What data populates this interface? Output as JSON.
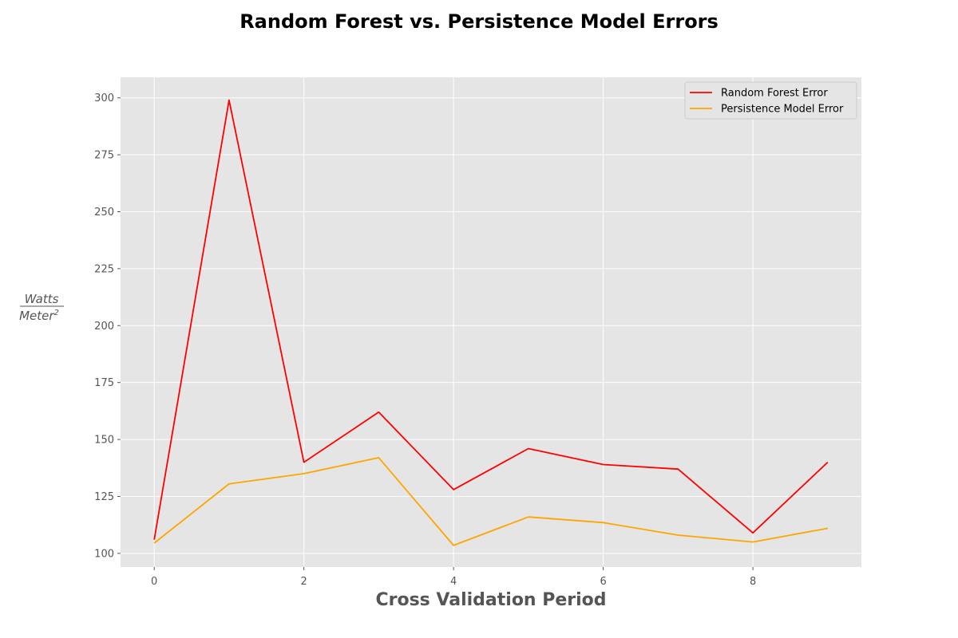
{
  "chart_data": {
    "type": "line",
    "title": "Random Forest vs. Persistence Model Errors",
    "xlabel": "Cross Validation Period",
    "ylabel": {
      "numerator": "Watts",
      "denominator": "Meter",
      "superscript": "2"
    },
    "x": [
      0,
      1,
      2,
      3,
      4,
      5,
      6,
      7,
      8,
      9
    ],
    "xlim": [
      -0.45,
      9.45
    ],
    "ylim": [
      94,
      309
    ],
    "xticks": [
      0,
      2,
      4,
      6,
      8
    ],
    "yticks": [
      100,
      125,
      150,
      175,
      200,
      225,
      250,
      275,
      300
    ],
    "grid": true,
    "legend_position": "top-right",
    "background": "#e5e5e5",
    "series": [
      {
        "name": "Random Forest Error",
        "color": "#ff0000",
        "values": [
          106,
          299,
          140,
          162,
          128,
          146,
          139,
          137,
          109,
          140
        ]
      },
      {
        "name": "Persistence Model Error",
        "color": "#ffa500",
        "values": [
          104.5,
          130.5,
          135,
          142,
          103.5,
          116,
          113.5,
          108,
          105,
          111
        ]
      }
    ]
  }
}
